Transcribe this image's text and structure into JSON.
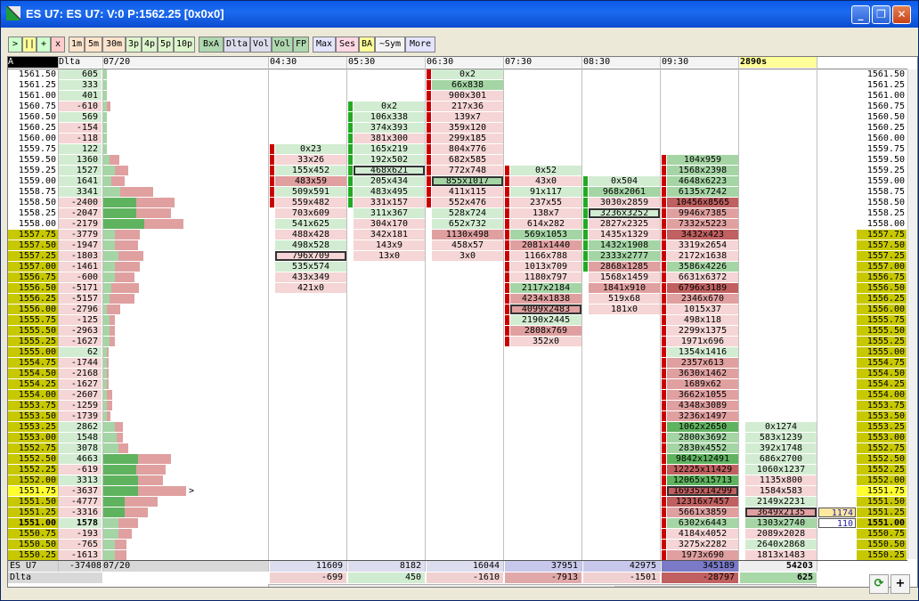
{
  "window": {
    "title": "ES U7: ES U7: V:0 P:1562.25 [0x0x0]",
    "minimize_label": "_",
    "maximize_label": "❐",
    "close_label": "✕"
  },
  "toolbar": [
    {
      "label": ">",
      "bg": "#ccffcc"
    },
    {
      "label": "||",
      "bg": "#ffff99"
    },
    {
      "label": "+",
      "bg": "#ccffcc"
    },
    {
      "label": "x",
      "bg": "#ffcccc"
    },
    {
      "label": "1m",
      "bg": "#ffe4cc"
    },
    {
      "label": "5m",
      "bg": "#ffe4cc"
    },
    {
      "label": "30m",
      "bg": "#ffe4cc"
    },
    {
      "label": "3p",
      "bg": "#ddf5cc"
    },
    {
      "label": "4p",
      "bg": "#ddf5cc"
    },
    {
      "label": "5p",
      "bg": "#ddf5cc"
    },
    {
      "label": "10p",
      "bg": "#ddf5cc"
    },
    {
      "label": "BxA",
      "bg": "#b0d8b0"
    },
    {
      "label": "Dlta",
      "bg": "#ddddee"
    },
    {
      "label": "Vol",
      "bg": "#ddddee"
    },
    {
      "label": "Vol",
      "bg": "#b0d8b0"
    },
    {
      "label": "FP",
      "bg": "#b0d8b0"
    },
    {
      "label": "Max",
      "bg": "#e4e4ff"
    },
    {
      "label": "Ses",
      "bg": "#ffd8e4"
    },
    {
      "label": "BA",
      "bg": "#ffff99"
    },
    {
      "label": "~Sym",
      "bg": "#f4f4f4"
    },
    {
      "label": "More",
      "bg": "#e4e4ff"
    }
  ],
  "header": {
    "corner": "A",
    "dlta": "Dlta",
    "date": "07/20",
    "times": [
      "04:30",
      "05:30",
      "06:30",
      "07:30",
      "08:30",
      "09:30"
    ],
    "volume_label": "2890s"
  },
  "prices": [
    "1561.50",
    "1561.25",
    "1561.00",
    "1560.75",
    "1560.50",
    "1560.25",
    "1560.00",
    "1559.75",
    "1559.50",
    "1559.25",
    "1559.00",
    "1558.75",
    "1558.50",
    "1558.25",
    "1558.00",
    "1557.75",
    "1557.50",
    "1557.25",
    "1557.00",
    "1556.75",
    "1556.50",
    "1556.25",
    "1556.00",
    "1555.75",
    "1555.50",
    "1555.25",
    "1555.00",
    "1554.75",
    "1554.50",
    "1554.25",
    "1554.00",
    "1553.75",
    "1553.50",
    "1553.25",
    "1553.00",
    "1552.75",
    "1552.50",
    "1552.25",
    "1552.00",
    "1551.75",
    "1551.50",
    "1551.25",
    "1551.00",
    "1550.75",
    "1550.50",
    "1550.25"
  ],
  "deltas": [
    "605",
    "333",
    "401",
    "-610",
    "569",
    "-154",
    "-118",
    "122",
    "1360",
    "1527",
    "1641",
    "3341",
    "-2400",
    "-2047",
    "-2179",
    "-3779",
    "-1947",
    "-1803",
    "-1461",
    "-600",
    "-5171",
    "-5157",
    "-2796",
    "-125",
    "-2963",
    "-1627",
    "62",
    "-1744",
    "-2168",
    "-1627",
    "-2607",
    "-1259",
    "-1739",
    "2862",
    "1548",
    "3078",
    "4663",
    "-619",
    "3313",
    "-3637",
    "-4777",
    "-3316",
    "1578",
    "-193",
    "-765",
    "-1613"
  ],
  "profile": {
    "green": [
      0.02,
      0.02,
      0.02,
      0.02,
      0.02,
      0.02,
      0.02,
      0.02,
      0.04,
      0.07,
      0.05,
      0.1,
      0.2,
      0.2,
      0.25,
      0.07,
      0.07,
      0.09,
      0.07,
      0.07,
      0.05,
      0.04,
      0.02,
      0.04,
      0.04,
      0.04,
      0.02,
      0.02,
      0.02,
      0.02,
      0.02,
      0.02,
      0.02,
      0.07,
      0.08,
      0.09,
      0.21,
      0.2,
      0.21,
      0.21,
      0.13,
      0.13,
      0.09,
      0.09,
      0.07,
      0.07
    ],
    "red": [
      0,
      0,
      0,
      0.02,
      0,
      0,
      0,
      0,
      0.06,
      0.08,
      0.08,
      0.2,
      0.23,
      0.21,
      0.24,
      0.15,
      0.14,
      0.15,
      0.15,
      0.12,
      0.17,
      0.15,
      0.08,
      0.03,
      0.03,
      0.03,
      0.01,
      0.01,
      0.01,
      0.01,
      0.03,
      0.03,
      0.02,
      0.05,
      0.04,
      0.06,
      0.2,
      0.18,
      0.15,
      0.29,
      0.2,
      0.14,
      0.12,
      0.08,
      0.07,
      0.07
    ]
  },
  "columns": [
    {
      "time": "04:30",
      "start": 7,
      "cells": [
        [
          "0x23",
          "g1"
        ],
        [
          "33x26",
          "r1"
        ],
        [
          "155x452",
          "g1"
        ],
        [
          "483x59",
          "r2"
        ],
        [
          "509x591",
          "g1"
        ],
        [
          "559x482",
          "r1"
        ],
        [
          "703x609",
          "r1"
        ],
        [
          "541x625",
          "g1"
        ],
        [
          "488x428",
          "r1"
        ],
        [
          "498x528",
          "g1"
        ],
        [
          "796x709",
          "r1",
          "box"
        ],
        [
          "535x574",
          "g1"
        ],
        [
          "433x349",
          "r1"
        ],
        [
          "421x0",
          "r1"
        ]
      ],
      "bars": [
        1,
        1,
        1,
        1,
        1,
        1
      ]
    },
    {
      "time": "05:30",
      "start": 3,
      "cells": [
        [
          "0x2",
          "g1"
        ],
        [
          "106x338",
          "g1"
        ],
        [
          "374x393",
          "g1"
        ],
        [
          "381x300",
          "r1"
        ],
        [
          "165x219",
          "g1"
        ],
        [
          "192x502",
          "g1"
        ],
        [
          "468x621",
          "g1",
          "box"
        ],
        [
          "205x434",
          "g1"
        ],
        [
          "483x495",
          "g1"
        ],
        [
          "331x157",
          "r1"
        ],
        [
          "311x367",
          "g1"
        ],
        [
          "304x170",
          "r1"
        ],
        [
          "342x181",
          "r1"
        ],
        [
          "143x9",
          "r1"
        ],
        [
          "13x0",
          "r1"
        ]
      ],
      "bars": [
        -1,
        -1,
        -1,
        -1,
        -1,
        -1,
        -1,
        -1,
        -1,
        -1
      ]
    },
    {
      "time": "06:30",
      "start": 0,
      "cells": [
        [
          "0x2",
          "g1"
        ],
        [
          "66x838",
          "g2"
        ],
        [
          "900x301",
          "r1"
        ],
        [
          "217x36",
          "r1"
        ],
        [
          "139x7",
          "r1"
        ],
        [
          "359x120",
          "r1"
        ],
        [
          "299x185",
          "r1"
        ],
        [
          "804x776",
          "r1"
        ],
        [
          "682x585",
          "r1"
        ],
        [
          "772x748",
          "r1"
        ],
        [
          "855x1017",
          "g2",
          "box"
        ],
        [
          "411x115",
          "r1"
        ],
        [
          "552x476",
          "r1"
        ],
        [
          "528x724",
          "g1"
        ],
        [
          "652x732",
          "g1"
        ],
        [
          "1130x498",
          "r2"
        ],
        [
          "458x57",
          "r1"
        ],
        [
          "3x0",
          "r1"
        ]
      ],
      "bars": [
        1,
        1,
        1,
        1,
        1,
        1,
        1,
        1,
        1,
        1,
        1,
        1,
        1
      ]
    },
    {
      "time": "07:30",
      "start": 9,
      "cells": [
        [
          "0x52",
          "g1"
        ],
        [
          "43x0",
          "r1"
        ],
        [
          "91x117",
          "g1"
        ],
        [
          "237x55",
          "r1"
        ],
        [
          "138x7",
          "r1"
        ],
        [
          "614x282",
          "r1"
        ],
        [
          "569x1053",
          "g2"
        ],
        [
          "2081x1440",
          "r2"
        ],
        [
          "1166x788",
          "r1"
        ],
        [
          "1013x709",
          "r1"
        ],
        [
          "1180x797",
          "r1"
        ],
        [
          "2117x2184",
          "g2"
        ],
        [
          "4234x1838",
          "r2"
        ],
        [
          "4099x2483",
          "r2",
          "box"
        ],
        [
          "2190x2445",
          "g1"
        ],
        [
          "2808x769",
          "r2"
        ],
        [
          "352x0",
          "r1"
        ]
      ],
      "bars": [
        1,
        1,
        1,
        1,
        1,
        1,
        1,
        1,
        1,
        1,
        1,
        1,
        1,
        1,
        1,
        1,
        1
      ]
    },
    {
      "time": "08:30",
      "start": 10,
      "cells": [
        [
          "0x504",
          "g1"
        ],
        [
          "968x2061",
          "g2"
        ],
        [
          "3030x2859",
          "r1"
        ],
        [
          "3236x3252",
          "g1",
          "box"
        ],
        [
          "2827x2325",
          "r1"
        ],
        [
          "1435x1329",
          "r1"
        ],
        [
          "1432x1908",
          "g2"
        ],
        [
          "2333x2777",
          "g2"
        ],
        [
          "2868x1285",
          "r2"
        ],
        [
          "1568x1459",
          "r1"
        ],
        [
          "1841x910",
          "r2"
        ],
        [
          "519x68",
          "r1"
        ],
        [
          "181x0",
          "r1"
        ]
      ],
      "bars": [
        -1,
        -1,
        -1,
        -1,
        -1,
        -1,
        -1,
        -1,
        -1
      ]
    },
    {
      "time": "09:30",
      "start": 8,
      "cells": [
        [
          "104x959",
          "g2"
        ],
        [
          "1568x2398",
          "g2"
        ],
        [
          "4648x6223",
          "g2"
        ],
        [
          "6135x7242",
          "g2"
        ],
        [
          "10456x8565",
          "r3"
        ],
        [
          "9946x7385",
          "r2"
        ],
        [
          "7332x5223",
          "r2"
        ],
        [
          "3432x423",
          "r3"
        ],
        [
          "3319x2654",
          "r1"
        ],
        [
          "2172x1638",
          "r1"
        ],
        [
          "3586x4226",
          "g2"
        ],
        [
          "6631x6372",
          "r1"
        ],
        [
          "6796x3189",
          "r3"
        ],
        [
          "2346x670",
          "r2"
        ],
        [
          "1015x37",
          "r1"
        ],
        [
          "498x118",
          "r1"
        ],
        [
          "2299x1375",
          "r1"
        ],
        [
          "1971x696",
          "r1"
        ],
        [
          "1354x1416",
          "g1"
        ],
        [
          "2357x613",
          "r2"
        ],
        [
          "3630x1462",
          "r2"
        ],
        [
          "1689x62",
          "r2"
        ],
        [
          "3662x1055",
          "r2"
        ],
        [
          "4348x3089",
          "r2"
        ],
        [
          "3236x1497",
          "r2"
        ],
        [
          "1062x2650",
          "g3"
        ],
        [
          "2800x3692",
          "g2"
        ],
        [
          "2830x4552",
          "g2"
        ],
        [
          "9842x12491",
          "g3"
        ],
        [
          "12225x11429",
          "r3"
        ],
        [
          "12065x15713",
          "g3"
        ],
        [
          "16935x14299",
          "r3",
          "box"
        ],
        [
          "12316x7457",
          "r3"
        ],
        [
          "5661x3859",
          "r2"
        ],
        [
          "6302x6443",
          "g2"
        ],
        [
          "4184x4052",
          "r1"
        ],
        [
          "3275x2282",
          "r1"
        ],
        [
          "1973x690",
          "r2"
        ]
      ],
      "bars": [
        1,
        1,
        1,
        1,
        1,
        1,
        1,
        1,
        1,
        1,
        1,
        1,
        1,
        1,
        1,
        1,
        1,
        1,
        1,
        1,
        1,
        1,
        1,
        1,
        1,
        1,
        1,
        1,
        1,
        1,
        1,
        1,
        1,
        1,
        1,
        1,
        1,
        1
      ]
    },
    {
      "time": "",
      "start": 33,
      "cells": [
        [
          "0x1274",
          "g1"
        ],
        [
          "583x1239",
          "g1"
        ],
        [
          "392x1748",
          "g1"
        ],
        [
          "686x2700",
          "g1"
        ],
        [
          "1060x1237",
          "g1"
        ],
        [
          "1135x800",
          "r1"
        ],
        [
          "1584x583",
          "r1"
        ],
        [
          "2149x2231",
          "g1"
        ],
        [
          "3649x2135",
          "r2",
          "box"
        ],
        [
          "1303x2740",
          "g2"
        ],
        [
          "2089x2028",
          "r1"
        ],
        [
          "2640x2868",
          "g1"
        ],
        [
          "1813x1483",
          "r1"
        ]
      ],
      "bars": []
    }
  ],
  "side_ticks": [
    {
      "row": 41,
      "value": "1174",
      "bg": "#ffe8a0"
    },
    {
      "row": 42,
      "value": "110",
      "bg": "#ffffff"
    }
  ],
  "footer": {
    "sym": "ES U7",
    "total_delta": "-37408",
    "date": "07/20",
    "dlta_label": "Dlta",
    "volumes": [
      "11609",
      "8182",
      "16044",
      "37951",
      "42975",
      "345189",
      "54203"
    ],
    "deltas": [
      "-699",
      "450",
      "-1610",
      "-7913",
      "-1501",
      "-28797",
      "625"
    ]
  },
  "colors": {
    "g1": "#d2ecd2",
    "g2": "#a5d5a5",
    "g3": "#5fb35f",
    "r1": "#f5d5d5",
    "r2": "#e0a0a0",
    "r3": "#c06060",
    "gutter": "#c8c800",
    "current": "#ffff30"
  },
  "marker": ">"
}
